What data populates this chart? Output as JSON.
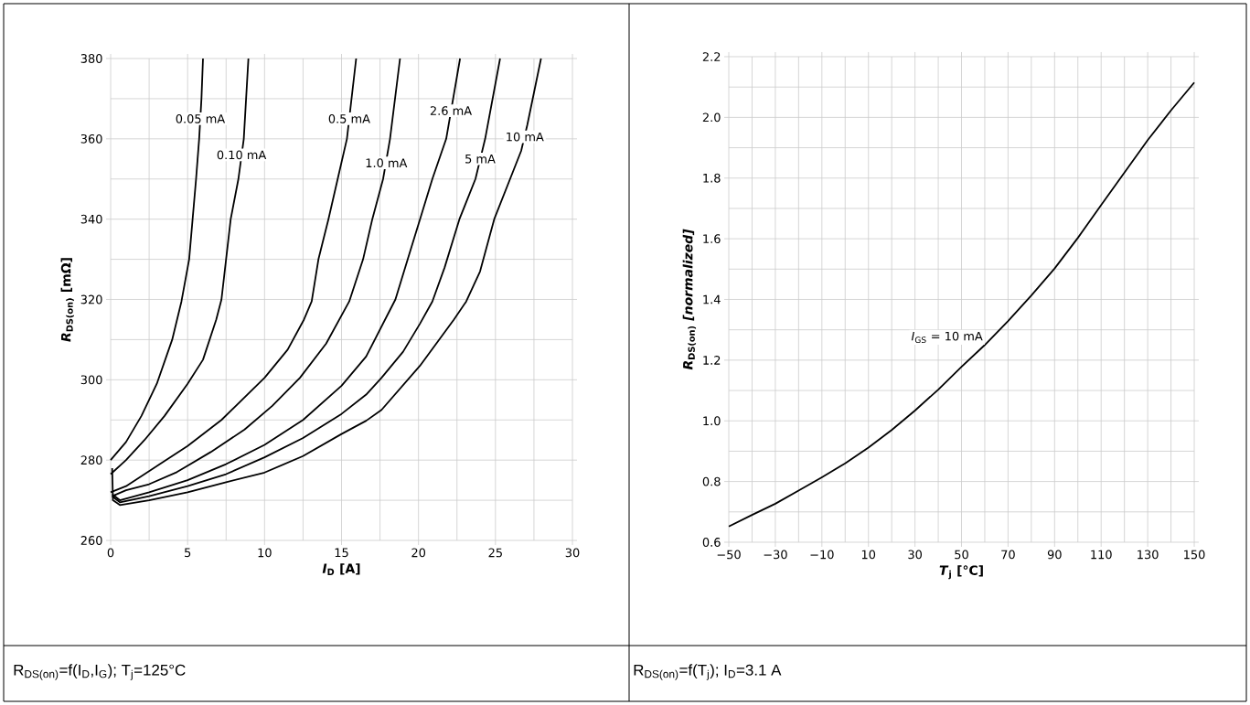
{
  "chart_data": [
    {
      "type": "line",
      "xlabel": "*I*$_{D}$ [A]",
      "ylabel": "*R*$_{DS(on)}$ [mΩ]",
      "xlim": [
        0,
        30
      ],
      "ylim": [
        260,
        380
      ],
      "xticks": [
        0,
        5,
        10,
        15,
        20,
        25,
        30
      ],
      "yticks": [
        260,
        280,
        300,
        320,
        340,
        360,
        380
      ],
      "grid": true,
      "line_style": "solid",
      "series": [
        {
          "color": "#000000",
          "x": [
            0,
            1,
            2,
            3,
            4,
            4.6,
            5.1,
            5.55,
            5.75,
            5.9,
            6.0
          ],
          "values": [
            280,
            284.5,
            291,
            299,
            310,
            319.5,
            330,
            350,
            360,
            370,
            380
          ]
        },
        {
          "color": "#000000",
          "x": [
            0,
            1,
            2.2,
            3.5,
            5,
            6,
            6.86,
            7.2,
            7.5,
            7.8,
            8.3,
            8.65,
            8.95
          ],
          "values": [
            276.5,
            280,
            285,
            291,
            299,
            305,
            315,
            320,
            330,
            340,
            350,
            360,
            380
          ]
        },
        {
          "color": "#000000",
          "x": [
            0,
            1,
            3.2,
            5,
            7.2,
            10,
            11.5,
            12.56,
            13.06,
            13.5,
            14.15,
            14.75,
            15.35,
            15.95
          ],
          "values": [
            272,
            273.5,
            279,
            283.5,
            290,
            300.5,
            307.5,
            315,
            319.5,
            330,
            340,
            350,
            360,
            380
          ]
        },
        {
          "color": "#000000",
          "x": [
            0.1,
            1,
            2.5,
            4.3,
            6.5,
            8.7,
            10.5,
            12.3,
            14,
            15.5,
            16.4,
            17.0,
            17.7,
            18.15,
            18.8
          ],
          "values": [
            271,
            272.5,
            274,
            277,
            282,
            287.6,
            293.5,
            300.5,
            309,
            319.5,
            330,
            340,
            350,
            360,
            380
          ]
        },
        {
          "color": "#000000",
          "x": [
            0.1,
            0.6,
            2.5,
            5,
            7.5,
            10,
            12.5,
            15,
            16.6,
            18.5,
            19.3,
            20.1,
            20.9,
            21.8,
            22.7
          ],
          "values": [
            271.5,
            270,
            272,
            275,
            279,
            283.8,
            290,
            298.5,
            305.8,
            320,
            330,
            340,
            350,
            360,
            380
          ]
        },
        {
          "color": "#000000",
          "x": [
            0.1,
            0.6,
            2.5,
            5,
            7.5,
            10,
            12.5,
            15,
            16.6,
            17.6,
            19,
            20.1,
            20.9,
            21.7,
            22.66,
            23.7,
            24.33,
            25.3
          ],
          "values": [
            271,
            269.5,
            271,
            273.5,
            276.5,
            280.7,
            285.5,
            291.5,
            296.3,
            300.5,
            307,
            314,
            319.5,
            328,
            340,
            350,
            360,
            380
          ]
        },
        {
          "color": "#000000",
          "x": [
            0.1,
            0.15,
            0.6,
            2.5,
            5,
            7.5,
            10,
            12.5,
            15,
            16.6,
            17.6,
            20.1,
            22.3,
            23.1,
            24,
            24.92,
            25.95,
            26.67,
            27.07,
            27.96
          ],
          "values": [
            278,
            270,
            268.8,
            270,
            272,
            274.5,
            276.9,
            281,
            286.5,
            289.8,
            292.5,
            303.5,
            315,
            319.5,
            327,
            340,
            350,
            357,
            363.5,
            380
          ]
        }
      ],
      "annotations": [
        {
          "text": "0.05 mA",
          "x": 5.82,
          "y": 365
        },
        {
          "text": "0.10 mA",
          "x": 8.5,
          "y": 356
        },
        {
          "text": "0.5 mA",
          "x": 15.5,
          "y": 365
        },
        {
          "text": "1.0 mA",
          "x": 17.9,
          "y": 354
        },
        {
          "text": "2.6 mA",
          "x": 22.1,
          "y": 367
        },
        {
          "text": "5 mA",
          "x": 24.0,
          "y": 355
        },
        {
          "text": "10 mA",
          "x": 26.9,
          "y": 360.5
        },
        "R$_{DS(on)}$=f(I$_{D}$,I$_{G}$); T$_{j}$=125°C"
      ]
    },
    {
      "type": "line",
      "xlabel": "*T*$_{j}$ [°C]",
      "ylabel": "*R*$_{DS(on)}$ *[normalized]*",
      "xlim": [
        -50,
        150
      ],
      "ylim": [
        0.6,
        2.2
      ],
      "xticks": [
        {
          "value": -50,
          "label": "−50"
        },
        {
          "value": -30,
          "label": "−30"
        },
        {
          "value": -10,
          "label": "−10"
        },
        10,
        30,
        50,
        70,
        90,
        110,
        130,
        150
      ],
      "yticks": [
        0.6,
        0.8,
        {
          "value": 1,
          "label": "1.0"
        },
        1.2,
        1.4,
        1.6,
        1.8,
        {
          "value": 2,
          "label": "2.0"
        },
        2.2
      ],
      "grid": true,
      "line_style": "solid",
      "series": [
        {
          "color": "#000000",
          "x": [
            -50,
            -40,
            -30,
            -20,
            -10,
            0,
            10,
            20,
            30,
            40,
            50,
            60,
            70,
            80,
            90,
            100,
            110,
            120,
            130,
            140,
            150
          ],
          "values": [
            0.652,
            0.69,
            0.727,
            0.77,
            0.814,
            0.86,
            0.912,
            0.97,
            1.034,
            1.103,
            1.178,
            1.25,
            1.329,
            1.413,
            1.502,
            1.603,
            1.711,
            1.818,
            1.925,
            2.023,
            2.115
          ]
        }
      ],
      "annotations": [
        {
          "text": "*I*$_{GS}$ = 10 mA",
          "x": 60,
          "y": 1.25
        },
        "R$_{DS(on)}$=f(T$_{j}$); I$_{D}$=3.1 A"
      ]
    }
  ]
}
